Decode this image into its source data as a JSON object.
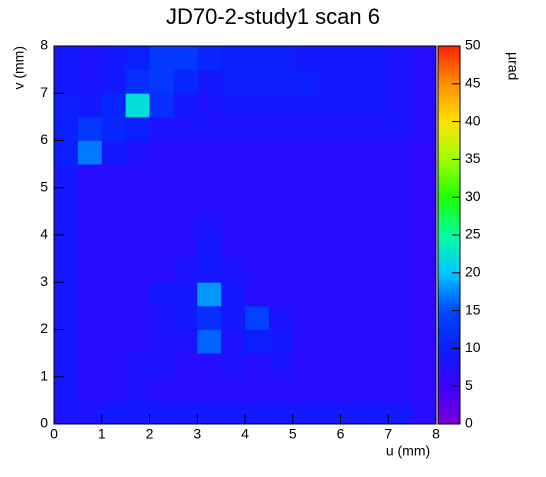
{
  "chart_data": {
    "type": "heatmap",
    "title": "JD70-2-study1 scan 6",
    "x_label": "u (mm)",
    "y_label": "v (mm)",
    "z_label": "µrad",
    "xlim": [
      0,
      8
    ],
    "ylim": [
      0,
      8
    ],
    "zlim": [
      0,
      50
    ],
    "xticks": [
      0,
      1,
      2,
      3,
      4,
      5,
      6,
      7,
      8
    ],
    "yticks": [
      0,
      1,
      2,
      3,
      4,
      5,
      6,
      7,
      8
    ],
    "zticks": [
      0,
      5,
      10,
      15,
      20,
      25,
      30,
      35,
      40,
      45,
      50
    ],
    "xbins": [
      0,
      0.5,
      1,
      1.5,
      2,
      2.5,
      3,
      3.5,
      4,
      4.5,
      5,
      5.5,
      6,
      6.5,
      7,
      7.5,
      8
    ],
    "ybins": [
      0,
      0.5,
      1,
      1.5,
      2,
      2.5,
      3,
      3.5,
      4,
      4.5,
      5,
      5.5,
      6,
      6.5,
      7,
      7.5,
      8
    ],
    "colormap": [
      "#7a00d6",
      "#3a00ff",
      "#0a1eff",
      "#0048ff",
      "#00c8ff",
      "#00ffa0",
      "#20ff00",
      "#a0ff00",
      "#ffe000",
      "#ff9000",
      "#ff2000"
    ],
    "z": [
      [
        8,
        8,
        9,
        9,
        9,
        9,
        9,
        9,
        9,
        9,
        9,
        9,
        9,
        9,
        9,
        7
      ],
      [
        9,
        7,
        7,
        8,
        7,
        7,
        7,
        7,
        7,
        7,
        7,
        7,
        7,
        7,
        7,
        6
      ],
      [
        9,
        7,
        7,
        8,
        8,
        7,
        7,
        8,
        7,
        8,
        7,
        7,
        7,
        7,
        7,
        6
      ],
      [
        9,
        7,
        7,
        7,
        8,
        8,
        16,
        8,
        10,
        9,
        7,
        7,
        7,
        7,
        7,
        6
      ],
      [
        9,
        7,
        7,
        7,
        8,
        9,
        12,
        9,
        14,
        8,
        7,
        7,
        7,
        7,
        7,
        6
      ],
      [
        9,
        7,
        7,
        7,
        9,
        9,
        18,
        9,
        7,
        7,
        7,
        7,
        7,
        7,
        7,
        6
      ],
      [
        9,
        7,
        7,
        7,
        7,
        8,
        9,
        8,
        7,
        7,
        7,
        7,
        7,
        7,
        7,
        6
      ],
      [
        9,
        7,
        7,
        7,
        7,
        7,
        9,
        7,
        7,
        7,
        7,
        7,
        7,
        7,
        7,
        6
      ],
      [
        9,
        7,
        7,
        7,
        7,
        7,
        8,
        7,
        7,
        7,
        7,
        7,
        7,
        7,
        7,
        6
      ],
      [
        9,
        7,
        7,
        7,
        7,
        7,
        7,
        7,
        7,
        7,
        7,
        7,
        7,
        7,
        7,
        6
      ],
      [
        9,
        7,
        7,
        7,
        7,
        7,
        7,
        7,
        7,
        7,
        7,
        7,
        7,
        7,
        7,
        6
      ],
      [
        10,
        17,
        9,
        8,
        7,
        7,
        7,
        7,
        7,
        7,
        7,
        7,
        7,
        7,
        7,
        6
      ],
      [
        10,
        13,
        11,
        10,
        8,
        8,
        8,
        8,
        8,
        8,
        8,
        8,
        8,
        8,
        8,
        7
      ],
      [
        10,
        9,
        11,
        22,
        12,
        9,
        8,
        9,
        9,
        9,
        9,
        9,
        9,
        9,
        8,
        7
      ],
      [
        9,
        8,
        9,
        12,
        13,
        11,
        9,
        10,
        10,
        10,
        10,
        9,
        9,
        9,
        8,
        7
      ],
      [
        9,
        8,
        9,
        10,
        13,
        13,
        11,
        10,
        10,
        10,
        9,
        9,
        9,
        9,
        8,
        7
      ]
    ]
  }
}
